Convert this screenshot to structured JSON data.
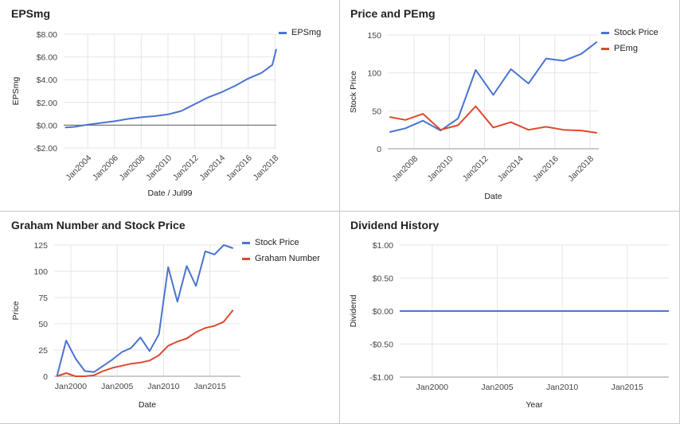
{
  "colors": {
    "blue": "#4a74d0",
    "red": "#dc4a2e",
    "grid": "#e6e6e6",
    "zero": "#7a7a7a"
  },
  "chart_data": [
    {
      "type": "line",
      "title": "EPSmg",
      "xlabel": "Date / Jul99",
      "ylabel": "EPSmg",
      "x_type": "year",
      "xlim": [
        2002.2,
        2018.1
      ],
      "ylim": [
        -2,
        8
      ],
      "yticks": [
        -2,
        0,
        2,
        4,
        6,
        8
      ],
      "ytick_labels": [
        "-$2.00",
        "$0.00",
        "$2.00",
        "$4.00",
        "$6.00",
        "$8.00"
      ],
      "xticks": [
        2004,
        2006,
        2008,
        2010,
        2012,
        2014,
        2016,
        2018
      ],
      "xtick_labels": [
        "Jan2004",
        "Jan2006",
        "Jan2008",
        "Jan2010",
        "Jan2012",
        "Jan2014",
        "Jan2016",
        "Jan2018"
      ],
      "rotate_xticks": true,
      "zero_line": true,
      "legend_position": "top-right",
      "series": [
        {
          "name": "EPSmg",
          "color": "#4a74d0",
          "points": [
            [
              2002.3,
              -0.2
            ],
            [
              2003,
              -0.15
            ],
            [
              2004,
              0.05
            ],
            [
              2005,
              0.2
            ],
            [
              2006,
              0.35
            ],
            [
              2007,
              0.55
            ],
            [
              2008,
              0.7
            ],
            [
              2009,
              0.8
            ],
            [
              2010,
              0.95
            ],
            [
              2011,
              1.25
            ],
            [
              2012,
              1.85
            ],
            [
              2013,
              2.45
            ],
            [
              2014,
              2.9
            ],
            [
              2015,
              3.45
            ],
            [
              2016,
              4.1
            ],
            [
              2017,
              4.6
            ],
            [
              2017.8,
              5.3
            ],
            [
              2018.1,
              6.7
            ]
          ]
        }
      ]
    },
    {
      "type": "line",
      "title": "Price and PEmg",
      "xlabel": "Date",
      "ylabel": "Stock Price",
      "x_type": "year",
      "xlim": [
        2006.5,
        2018.5
      ],
      "ylim": [
        0,
        150
      ],
      "yticks": [
        0,
        50,
        100,
        150
      ],
      "ytick_labels": [
        "0",
        "50",
        "100",
        "150"
      ],
      "xticks": [
        2008,
        2010,
        2012,
        2014,
        2016,
        2018
      ],
      "xtick_labels": [
        "Jan2008",
        "Jan2010",
        "Jan2012",
        "Jan2014",
        "Jan2016",
        "Jan2018"
      ],
      "rotate_xticks": true,
      "zero_line": false,
      "legend_position": "top-right",
      "series": [
        {
          "name": "Stock Price",
          "color": "#4a74d0",
          "points": [
            [
              2006.6,
              22
            ],
            [
              2007.5,
              27
            ],
            [
              2008.5,
              37
            ],
            [
              2009.5,
              24
            ],
            [
              2010.5,
              40
            ],
            [
              2011.5,
              104
            ],
            [
              2012.5,
              71
            ],
            [
              2013.5,
              105
            ],
            [
              2014.5,
              86
            ],
            [
              2015.5,
              119
            ],
            [
              2016.5,
              116
            ],
            [
              2017.5,
              125
            ],
            [
              2018.4,
              141
            ]
          ]
        },
        {
          "name": "PEmg",
          "color": "#dc4a2e",
          "points": [
            [
              2006.6,
              42
            ],
            [
              2007.5,
              38
            ],
            [
              2008.5,
              46
            ],
            [
              2009.5,
              25
            ],
            [
              2010.5,
              31
            ],
            [
              2011.5,
              56
            ],
            [
              2012.5,
              28
            ],
            [
              2013.5,
              35
            ],
            [
              2014.5,
              25
            ],
            [
              2015.5,
              29
            ],
            [
              2016.5,
              25
            ],
            [
              2017.5,
              24
            ],
            [
              2018.4,
              21
            ]
          ]
        }
      ]
    },
    {
      "type": "line",
      "title": "Graham Number and Stock Price",
      "xlabel": "Date",
      "ylabel": "Price",
      "x_type": "year",
      "xlim": [
        1998.2,
        2018.3
      ],
      "ylim": [
        0,
        125
      ],
      "yticks": [
        0,
        25,
        50,
        75,
        100,
        125
      ],
      "ytick_labels": [
        "0",
        "25",
        "50",
        "75",
        "100",
        "125"
      ],
      "xticks": [
        2000,
        2005,
        2010,
        2015
      ],
      "xtick_labels": [
        "Jan2000",
        "Jan2005",
        "Jan2010",
        "Jan2015"
      ],
      "rotate_xticks": false,
      "zero_line": false,
      "legend_position": "top-right",
      "series": [
        {
          "name": "Stock Price",
          "color": "#4a74d0",
          "points": [
            [
              1998.5,
              0
            ],
            [
              1999.5,
              34
            ],
            [
              2000.5,
              17
            ],
            [
              2001.5,
              5
            ],
            [
              2002.5,
              4
            ],
            [
              2003.5,
              10
            ],
            [
              2004.5,
              16
            ],
            [
              2005.5,
              23
            ],
            [
              2006.5,
              27
            ],
            [
              2007.5,
              37
            ],
            [
              2008.5,
              24
            ],
            [
              2009.5,
              40
            ],
            [
              2010.5,
              104
            ],
            [
              2011.5,
              71
            ],
            [
              2012.5,
              105
            ],
            [
              2013.5,
              86
            ],
            [
              2014.5,
              119
            ],
            [
              2015.5,
              116
            ],
            [
              2016.5,
              125
            ],
            [
              2017.5,
              122
            ]
          ]
        },
        {
          "name": "Graham Number",
          "color": "#dc4a2e",
          "points": [
            [
              1998.5,
              0
            ],
            [
              1999.5,
              3
            ],
            [
              2000.5,
              0
            ],
            [
              2001.5,
              0
            ],
            [
              2002.5,
              1
            ],
            [
              2003.5,
              5
            ],
            [
              2004.5,
              8
            ],
            [
              2005.5,
              10
            ],
            [
              2006.5,
              12
            ],
            [
              2007.5,
              13
            ],
            [
              2008.5,
              15
            ],
            [
              2009.5,
              20
            ],
            [
              2010.5,
              29
            ],
            [
              2011.5,
              33
            ],
            [
              2012.5,
              36
            ],
            [
              2013.5,
              42
            ],
            [
              2014.5,
              46
            ],
            [
              2015.5,
              48
            ],
            [
              2016.5,
              52
            ],
            [
              2017.5,
              63
            ]
          ]
        }
      ]
    },
    {
      "type": "line",
      "title": "Dividend History",
      "xlabel": "Year",
      "ylabel": "Dividend",
      "x_type": "year",
      "xlim": [
        1997.5,
        2018.2
      ],
      "ylim": [
        -1,
        1
      ],
      "yticks": [
        -1,
        -0.5,
        0,
        0.5,
        1
      ],
      "ytick_labels": [
        "-$1.00",
        "-$0.50",
        "$0.00",
        "$0.50",
        "$1.00"
      ],
      "xticks": [
        2000,
        2005,
        2010,
        2015
      ],
      "xtick_labels": [
        "Jan2000",
        "Jan2005",
        "Jan2010",
        "Jan2015"
      ],
      "rotate_xticks": false,
      "zero_line": false,
      "legend_position": "none",
      "series": [
        {
          "name": "",
          "color": "#4a74d0",
          "points": [
            [
              1997.5,
              0
            ],
            [
              2018.2,
              0
            ]
          ]
        }
      ]
    }
  ]
}
